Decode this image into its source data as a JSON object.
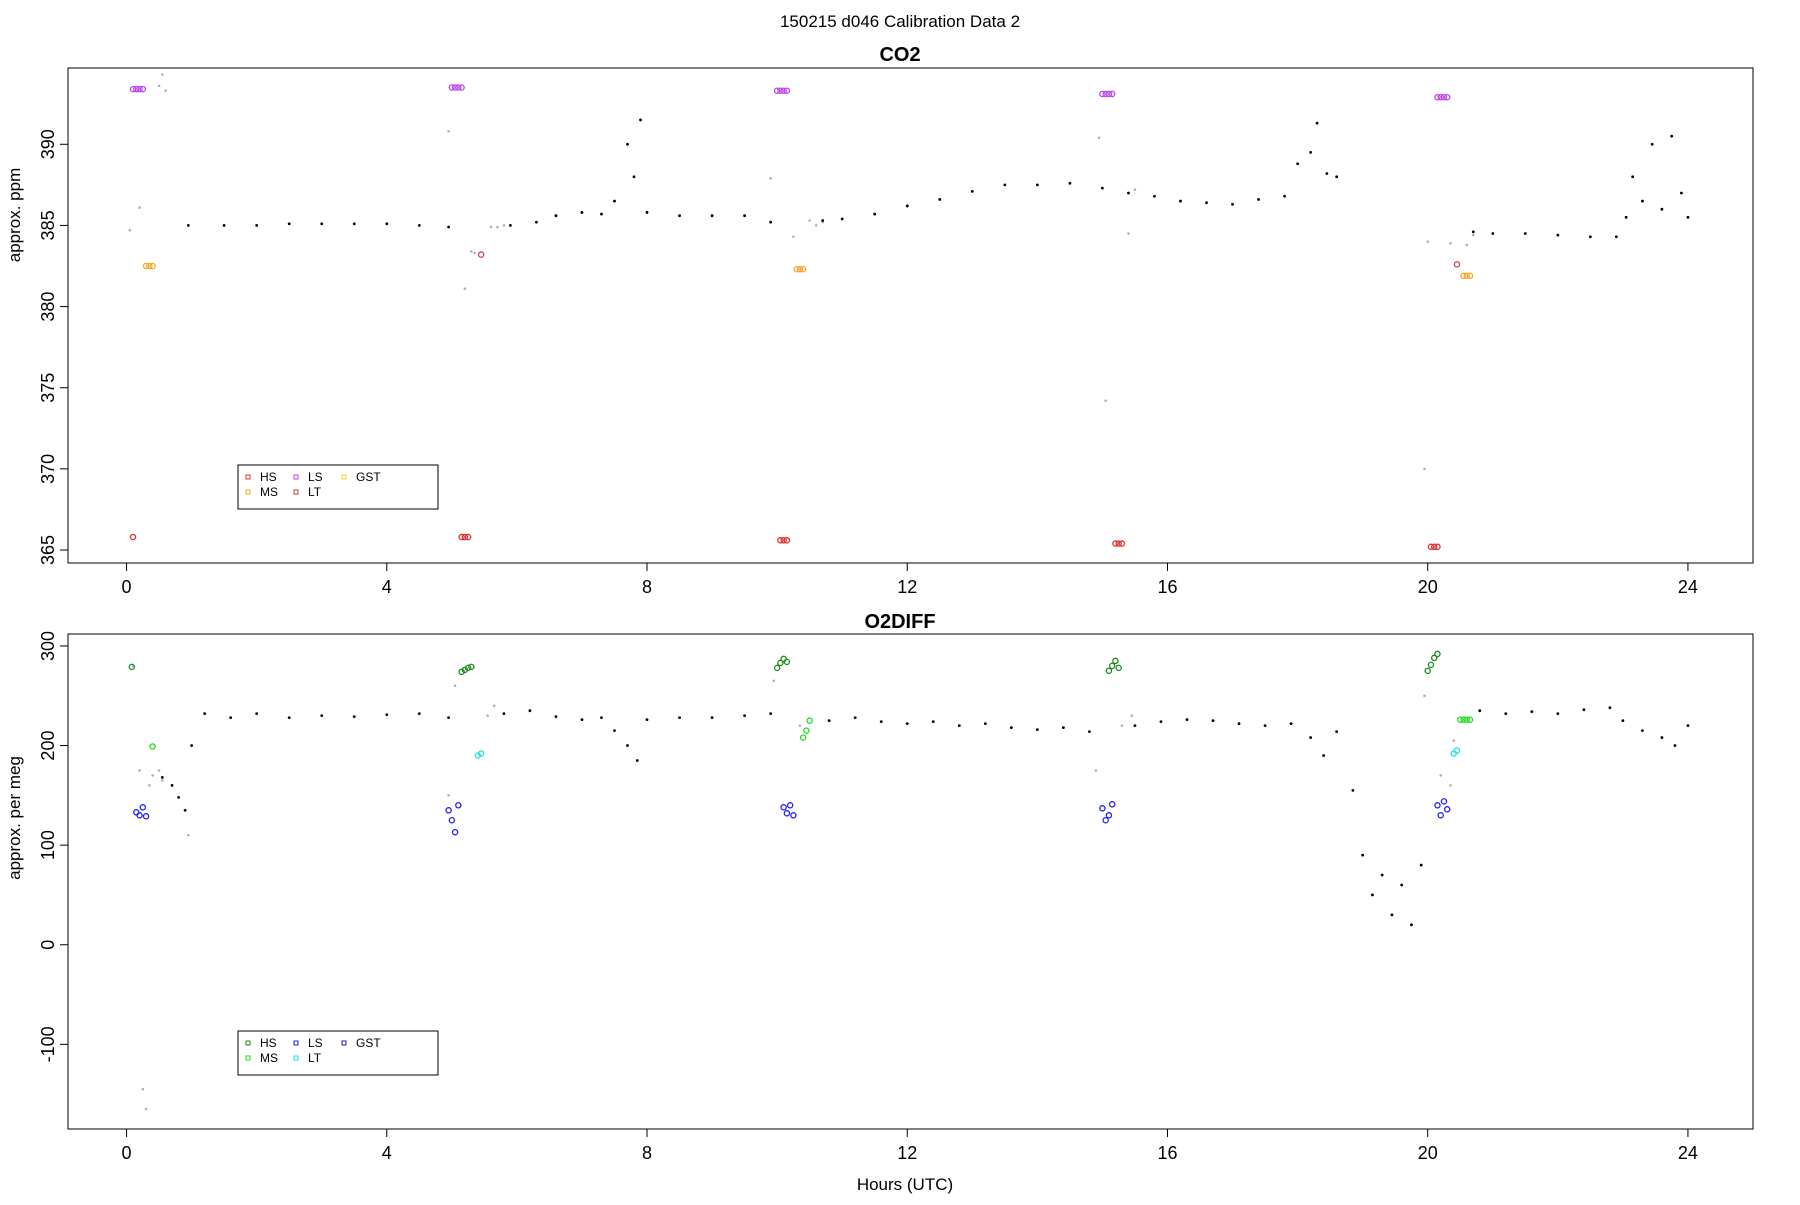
{
  "page": {
    "suptitle": "150215   d046   Calibration Data 2"
  },
  "chart_data": [
    {
      "type": "scatter",
      "title": "CO2",
      "xlabel": "",
      "ylabel": "approx. ppm",
      "xlim": [
        -0.9,
        25
      ],
      "ylim": [
        364.2,
        394.7
      ],
      "xticks": [
        0,
        4,
        8,
        12,
        16,
        20,
        24
      ],
      "yticks": [
        365,
        370,
        375,
        380,
        385,
        390
      ],
      "legend": {
        "position": "bottom-left",
        "entries": [
          {
            "name": "HS",
            "color": "#e03030"
          },
          {
            "name": "MS",
            "color": "#f5a623"
          },
          {
            "name": "LS",
            "color": "#bb44ee"
          },
          {
            "name": "LT",
            "color": "#c84040"
          },
          {
            "name": "GST",
            "color": "#f0d020"
          }
        ]
      },
      "calibration_groups": [
        {
          "name": "LS",
          "color": "#bb44ee",
          "x": [
            0.1,
            0.15,
            0.2,
            0.25
          ],
          "y": [
            393.4,
            393.4,
            393.4,
            393.4
          ]
        },
        {
          "name": "LS",
          "color": "#bb44ee",
          "x": [
            5.0,
            5.05,
            5.1,
            5.15
          ],
          "y": [
            393.5,
            393.5,
            393.5,
            393.5
          ]
        },
        {
          "name": "LS",
          "color": "#bb44ee",
          "x": [
            10.0,
            10.05,
            10.1,
            10.15
          ],
          "y": [
            393.3,
            393.3,
            393.3,
            393.3
          ]
        },
        {
          "name": "LS",
          "color": "#bb44ee",
          "x": [
            15.0,
            15.05,
            15.1,
            15.15
          ],
          "y": [
            393.1,
            393.1,
            393.1,
            393.1
          ]
        },
        {
          "name": "LS",
          "color": "#bb44ee",
          "x": [
            20.15,
            20.2,
            20.25,
            20.3
          ],
          "y": [
            392.9,
            392.9,
            392.9,
            392.9
          ]
        },
        {
          "name": "MS",
          "color": "#f5a623",
          "x": [
            0.3,
            0.35,
            0.4
          ],
          "y": [
            382.5,
            382.5,
            382.5
          ]
        },
        {
          "name": "MS",
          "color": "#f5a623",
          "x": [
            10.3,
            10.35,
            10.4
          ],
          "y": [
            382.3,
            382.3,
            382.3
          ]
        },
        {
          "name": "MS",
          "color": "#f5a623",
          "x": [
            20.55,
            20.6,
            20.65
          ],
          "y": [
            381.9,
            381.9,
            381.9
          ]
        },
        {
          "name": "HS",
          "color": "#e03030",
          "x": [
            0.1,
            5.15,
            5.2,
            5.25,
            10.05,
            10.1,
            10.15,
            15.2,
            15.25,
            15.3,
            20.05,
            20.1,
            20.15
          ],
          "y": [
            365.8,
            365.8,
            365.8,
            365.8,
            365.6,
            365.6,
            365.6,
            365.4,
            365.4,
            365.4,
            365.2,
            365.2,
            365.2
          ]
        },
        {
          "name": "LT",
          "color": "#c84040",
          "x": [
            5.45,
            20.45
          ],
          "y": [
            383.2,
            382.6
          ]
        }
      ],
      "gray_points": {
        "x": [
          0.05,
          0.2,
          0.5,
          0.55,
          0.6,
          4.95,
          5.2,
          5.3,
          5.35,
          5.6,
          5.7,
          5.8,
          9.9,
          10.25,
          10.5,
          10.6,
          10.7,
          14.95,
          15.05,
          15.4,
          15.5,
          19.95,
          20.0,
          20.35,
          20.6,
          20.7
        ],
        "y": [
          384.7,
          386.1,
          393.6,
          394.3,
          393.3,
          390.8,
          381.1,
          383.4,
          383.3,
          384.9,
          384.9,
          385.0,
          387.9,
          384.3,
          385.3,
          385.0,
          385.2,
          390.4,
          374.2,
          384.5,
          387.2,
          370.0,
          384.0,
          383.9,
          383.8,
          384.4
        ]
      },
      "series": [
        {
          "name": "",
          "color": "#000000",
          "x": [
            0.95,
            1.5,
            2.0,
            2.5,
            3.0,
            3.5,
            4.0,
            4.5,
            4.95,
            5.9,
            6.3,
            6.6,
            7.0,
            7.3,
            7.5,
            7.7,
            7.8,
            7.9,
            8.0,
            8.5,
            9.0,
            9.5,
            9.9,
            10.7,
            11.0,
            11.5,
            12.0,
            12.5,
            13.0,
            13.5,
            14.0,
            14.5,
            15.0,
            15.4,
            15.8,
            16.2,
            16.6,
            17.0,
            17.4,
            17.8,
            18.0,
            18.2,
            18.3,
            18.45,
            18.6,
            20.7,
            21.0,
            21.5,
            22.0,
            22.5,
            22.9,
            23.05,
            23.15,
            23.3,
            23.45,
            23.6,
            23.75,
            23.9,
            24.0
          ],
          "y": [
            385.0,
            385.0,
            385.0,
            385.1,
            385.1,
            385.1,
            385.1,
            385.0,
            384.9,
            385.0,
            385.2,
            385.6,
            385.8,
            385.7,
            386.5,
            390.0,
            388.0,
            391.5,
            385.8,
            385.6,
            385.6,
            385.6,
            385.2,
            385.3,
            385.4,
            385.7,
            386.2,
            386.6,
            387.1,
            387.5,
            387.5,
            387.6,
            387.3,
            387.0,
            386.8,
            386.5,
            386.4,
            386.3,
            386.6,
            386.8,
            388.8,
            389.5,
            391.3,
            388.2,
            388.0,
            384.6,
            384.5,
            384.5,
            384.4,
            384.3,
            384.3,
            385.5,
            388.0,
            386.5,
            390.0,
            386.0,
            390.5,
            387.0,
            385.5
          ]
        }
      ]
    },
    {
      "type": "scatter",
      "title": "O2DIFF",
      "xlabel": "Hours (UTC)",
      "ylabel": "approx. per meg",
      "xlim": [
        -0.9,
        25
      ],
      "ylim": [
        -185,
        312
      ],
      "xticks": [
        0,
        4,
        8,
        12,
        16,
        20,
        24
      ],
      "yticks": [
        -100,
        0,
        100,
        200,
        300
      ],
      "legend": {
        "position": "bottom-left",
        "entries": [
          {
            "name": "HS",
            "color": "#1a8a1a"
          },
          {
            "name": "MS",
            "color": "#22dd22"
          },
          {
            "name": "LS",
            "color": "#2222ee"
          },
          {
            "name": "LT",
            "color": "#22e0e0"
          },
          {
            "name": "GST",
            "color": "#2222aa"
          }
        ]
      },
      "calibration_groups": [
        {
          "name": "HS",
          "color": "#1a8a1a",
          "x": [
            0.08,
            5.15,
            5.2,
            5.25,
            5.3,
            10.0,
            10.05,
            10.1,
            10.15,
            15.1,
            15.15,
            15.2,
            15.25,
            20.0,
            20.05,
            20.1,
            20.15
          ],
          "y": [
            279,
            274,
            276,
            278,
            279,
            278,
            283,
            287,
            284,
            275,
            280,
            285,
            278,
            275,
            281,
            288,
            292
          ]
        },
        {
          "name": "MS",
          "color": "#22dd22",
          "x": [
            0.4,
            10.4,
            10.45,
            10.5,
            20.5,
            20.55,
            20.6,
            20.65
          ],
          "y": [
            199,
            208,
            215,
            225,
            226,
            226,
            226,
            226
          ]
        },
        {
          "name": "LS",
          "color": "#2222ee",
          "x": [
            0.15,
            0.2,
            0.25,
            0.3,
            4.95,
            5.0,
            5.05,
            5.1,
            10.1,
            10.15,
            10.2,
            10.25,
            15.0,
            15.05,
            15.1,
            15.15,
            20.15,
            20.2,
            20.25,
            20.3
          ],
          "y": [
            133,
            130,
            138,
            129,
            135,
            125,
            113,
            140,
            138,
            132,
            140,
            130,
            137,
            125,
            130,
            141,
            140,
            130,
            144,
            136
          ]
        },
        {
          "name": "LT",
          "color": "#22e0e0",
          "x": [
            5.4,
            5.45,
            20.4,
            20.45
          ],
          "y": [
            190,
            192,
            192,
            195
          ]
        }
      ],
      "gray_points": {
        "x": [
          0.1,
          0.2,
          0.25,
          0.3,
          0.35,
          0.4,
          0.5,
          0.55,
          0.95,
          4.95,
          5.05,
          5.55,
          5.65,
          9.95,
          10.35,
          14.9,
          15.3,
          15.45,
          19.95,
          20.2,
          20.35,
          20.4
        ],
        "y": [
          280,
          175,
          -145,
          -165,
          160,
          170,
          175,
          165,
          110,
          150,
          260,
          230,
          240,
          265,
          220,
          175,
          220,
          230,
          250,
          170,
          160,
          205
        ]
      },
      "series": [
        {
          "name": "",
          "color": "#000000",
          "x": [
            0.55,
            0.7,
            0.8,
            0.9,
            1.0,
            1.2,
            1.6,
            2.0,
            2.5,
            3.0,
            3.5,
            4.0,
            4.5,
            4.95,
            5.8,
            6.2,
            6.6,
            7.0,
            7.3,
            7.5,
            7.7,
            7.85,
            8.0,
            8.5,
            9.0,
            9.5,
            9.9,
            10.8,
            11.2,
            11.6,
            12.0,
            12.4,
            12.8,
            13.2,
            13.6,
            14.0,
            14.4,
            14.8,
            15.5,
            15.9,
            16.3,
            16.7,
            17.1,
            17.5,
            17.9,
            18.2,
            18.4,
            18.6,
            18.85,
            19.0,
            19.15,
            19.3,
            19.45,
            19.6,
            19.75,
            19.9,
            20.8,
            21.2,
            21.6,
            22.0,
            22.4,
            22.8,
            23.0,
            23.3,
            23.6,
            23.8,
            24.0
          ],
          "y": [
            168,
            160,
            148,
            135,
            200,
            232,
            228,
            232,
            228,
            230,
            229,
            231,
            232,
            228,
            232,
            235,
            229,
            226,
            228,
            215,
            200,
            185,
            226,
            228,
            228,
            230,
            232,
            225,
            228,
            224,
            222,
            224,
            220,
            222,
            218,
            216,
            218,
            214,
            220,
            224,
            226,
            225,
            222,
            220,
            222,
            208,
            190,
            214,
            155,
            90,
            50,
            70,
            30,
            60,
            20,
            80,
            235,
            232,
            234,
            232,
            236,
            238,
            225,
            215,
            208,
            200,
            220
          ]
        }
      ]
    }
  ]
}
